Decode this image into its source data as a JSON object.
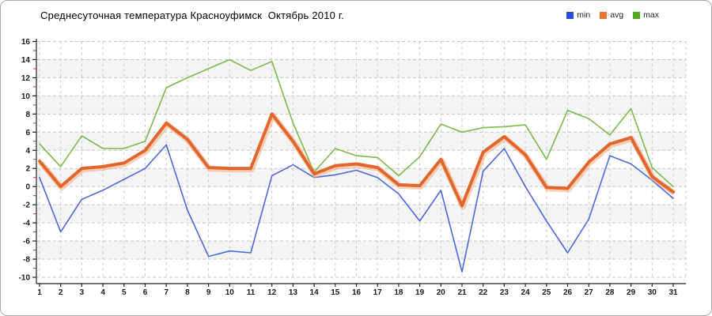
{
  "window": {
    "border_color": "#a9a9a9",
    "background": "#ffffff"
  },
  "chart_data": {
    "type": "line",
    "title": "Среднесуточная температура Красноуфимск  Октябрь 2010 г.",
    "xlabel": "",
    "ylabel": "",
    "x": [
      1,
      2,
      3,
      4,
      5,
      6,
      7,
      8,
      9,
      10,
      11,
      12,
      13,
      14,
      15,
      16,
      17,
      18,
      19,
      20,
      21,
      22,
      23,
      24,
      25,
      26,
      27,
      28,
      29,
      30,
      31
    ],
    "ylim": [
      -10,
      16
    ],
    "ytick_step": 2,
    "yticks": [
      16,
      14,
      12,
      10,
      8,
      6,
      4,
      2,
      0,
      -2,
      -4,
      -6,
      -8,
      -10
    ],
    "grid": "dashed",
    "band_color": "#f4f4f4",
    "grid_color": "#c6c6c6",
    "axis_color": "#222222",
    "minor_tick_color": "#cc3322",
    "legend_position": "top-right",
    "series": [
      {
        "name": "min",
        "color": "#2a4ed8",
        "line_color": "#4a69dd",
        "thick": false,
        "values": [
          1.0,
          -5.0,
          -1.4,
          -0.4,
          0.8,
          2.0,
          4.6,
          -2.6,
          -7.7,
          -7.1,
          -7.3,
          1.2,
          2.4,
          1.0,
          1.3,
          1.8,
          1.0,
          -0.8,
          -3.8,
          -0.4,
          -9.4,
          1.7,
          4.2,
          0.0,
          -3.8,
          -7.3,
          -3.6,
          3.4,
          2.5,
          0.7,
          -1.3
        ]
      },
      {
        "name": "avg",
        "color": "#e8722f",
        "line_color": "#e0662e",
        "halo_color": "#f5ab7c",
        "thick": true,
        "values": [
          2.8,
          0.0,
          2.0,
          2.2,
          2.6,
          4.0,
          7.0,
          5.2,
          2.1,
          2.0,
          2.0,
          8.0,
          5.0,
          1.4,
          2.3,
          2.5,
          2.1,
          0.2,
          0.1,
          3.0,
          -2.1,
          3.8,
          5.5,
          3.5,
          -0.1,
          -0.2,
          2.7,
          4.7,
          5.4,
          1.1,
          -0.6
        ]
      },
      {
        "name": "max",
        "color": "#55a822",
        "line_color": "#79ba49",
        "thick": false,
        "values": [
          4.7,
          2.2,
          5.6,
          4.2,
          4.2,
          5.0,
          10.9,
          12.0,
          13.0,
          14.0,
          12.8,
          13.8,
          7.0,
          1.6,
          4.2,
          3.4,
          3.2,
          1.2,
          3.3,
          6.9,
          6.0,
          6.5,
          6.6,
          6.8,
          3.0,
          8.4,
          7.5,
          5.7,
          8.6,
          2.1,
          0.0
        ]
      }
    ]
  }
}
